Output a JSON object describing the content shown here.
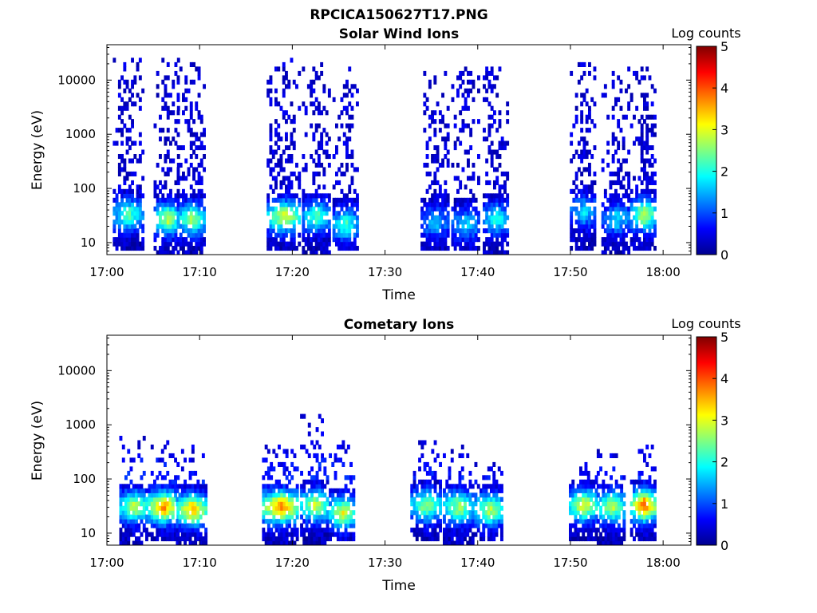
{
  "figure": {
    "title": "RPCICA150627T17.PNG"
  },
  "colormap": [
    "#00008f",
    "#0000ff",
    "#0080ff",
    "#00ffff",
    "#80ff80",
    "#ffff00",
    "#ff8000",
    "#ff0000",
    "#800000"
  ],
  "chart_data": [
    {
      "type": "heatmap",
      "title": "Solar Wind Ions",
      "xlabel": "Time",
      "ylabel": "Energy (eV)",
      "yscale": "log",
      "xlim": [
        "17:00",
        "18:03"
      ],
      "ylim": [
        6,
        45000
      ],
      "x_ticks": [
        "17:00",
        "17:10",
        "17:20",
        "17:30",
        "17:40",
        "17:50",
        "18:00"
      ],
      "y_ticks": [
        "10",
        "100",
        "1000",
        "10000"
      ],
      "colorbar": {
        "label": "Log counts",
        "min": 0,
        "max": 5,
        "ticks": [
          "0",
          "1",
          "2",
          "3",
          "4",
          "5"
        ]
      },
      "bursts": [
        {
          "time": "17:02.4",
          "emin": 8,
          "emax": 25000,
          "peak_energy": 30,
          "peak": 2.0,
          "width": 1.6
        },
        {
          "time": "17:06.6",
          "emin": 6,
          "emax": 25000,
          "peak_energy": 25,
          "peak": 2.6,
          "width": 1.4
        },
        {
          "time": "17:09.2",
          "emin": 6,
          "emax": 20000,
          "peak_energy": 25,
          "peak": 2.4,
          "width": 1.5
        },
        {
          "time": "17:19.2",
          "emin": 8,
          "emax": 25000,
          "peak_energy": 28,
          "peak": 2.7,
          "width": 1.8
        },
        {
          "time": "17:22.7",
          "emin": 6,
          "emax": 20000,
          "peak_energy": 28,
          "peak": 2.0,
          "width": 1.5
        },
        {
          "time": "17:25.8",
          "emin": 8,
          "emax": 15000,
          "peak_energy": 20,
          "peak": 2.0,
          "width": 1.3
        },
        {
          "time": "17:35.5",
          "emin": 8,
          "emax": 15000,
          "peak_energy": 22,
          "peak": 1.3,
          "width": 1.5
        },
        {
          "time": "17:38.8",
          "emin": 8,
          "emax": 15000,
          "peak_energy": 20,
          "peak": 1.4,
          "width": 1.5
        },
        {
          "time": "17:42.0",
          "emin": 6,
          "emax": 15000,
          "peak_energy": 25,
          "peak": 1.8,
          "width": 1.3
        },
        {
          "time": "17:51.5",
          "emin": 8,
          "emax": 20000,
          "peak_energy": 35,
          "peak": 1.5,
          "width": 1.4
        },
        {
          "time": "17:55.0",
          "emin": 6,
          "emax": 15000,
          "peak_energy": 25,
          "peak": 1.5,
          "width": 1.5
        },
        {
          "time": "17:58.0",
          "emin": 8,
          "emax": 15000,
          "peak_energy": 30,
          "peak": 2.6,
          "width": 1.4
        }
      ]
    },
    {
      "type": "heatmap",
      "title": "Cometary Ions",
      "xlabel": "Time",
      "ylabel": "Energy (eV)",
      "yscale": "log",
      "xlim": [
        "17:00",
        "18:03"
      ],
      "ylim": [
        6,
        45000
      ],
      "x_ticks": [
        "17:00",
        "17:10",
        "17:20",
        "17:30",
        "17:40",
        "17:50",
        "18:00"
      ],
      "y_ticks": [
        "10",
        "100",
        "1000",
        "10000"
      ],
      "colorbar": {
        "label": "Log counts",
        "min": 0,
        "max": 5,
        "ticks": [
          "0",
          "1",
          "2",
          "3",
          "4",
          "5"
        ]
      },
      "bursts": [
        {
          "time": "17:03.0",
          "emin": 6,
          "emax": 600,
          "peak_energy": 28,
          "peak": 2.6,
          "width": 1.5
        },
        {
          "time": "17:06.2",
          "emin": 8,
          "emax": 500,
          "peak_energy": 28,
          "peak": 3.5,
          "width": 1.6
        },
        {
          "time": "17:09.2",
          "emin": 6,
          "emax": 400,
          "peak_energy": 25,
          "peak": 3.3,
          "width": 1.6
        },
        {
          "time": "17:18.8",
          "emin": 6,
          "emax": 400,
          "peak_energy": 28,
          "peak": 3.6,
          "width": 1.9
        },
        {
          "time": "17:22.5",
          "emin": 6,
          "emax": 1500,
          "peak_energy": 30,
          "peak": 2.7,
          "width": 1.5
        },
        {
          "time": "17:25.5",
          "emin": 8,
          "emax": 500,
          "peak_energy": 22,
          "peak": 2.8,
          "width": 1.4
        },
        {
          "time": "17:34.5",
          "emin": 8,
          "emax": 500,
          "peak_energy": 30,
          "peak": 2.4,
          "width": 1.6
        },
        {
          "time": "17:38.0",
          "emin": 6,
          "emax": 400,
          "peak_energy": 28,
          "peak": 2.5,
          "width": 1.6
        },
        {
          "time": "17:41.3",
          "emin": 8,
          "emax": 250,
          "peak_energy": 25,
          "peak": 2.6,
          "width": 1.5
        },
        {
          "time": "17:51.5",
          "emin": 8,
          "emax": 200,
          "peak_energy": 30,
          "peak": 2.8,
          "width": 1.5
        },
        {
          "time": "17:54.5",
          "emin": 6,
          "emax": 300,
          "peak_energy": 28,
          "peak": 2.6,
          "width": 1.5
        },
        {
          "time": "17:58.0",
          "emin": 8,
          "emax": 400,
          "peak_energy": 30,
          "peak": 3.7,
          "width": 1.4
        }
      ]
    }
  ]
}
